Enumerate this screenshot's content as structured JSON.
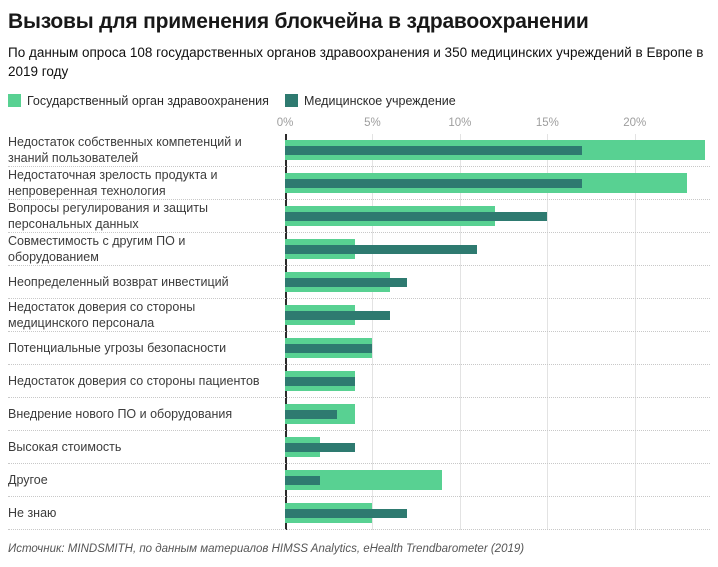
{
  "header": {
    "title": "Вызовы для применения блокчейна в здравоохранении",
    "subtitle": "По данным опроса 108 государственных органов здравоохранения и 350 медицинских учреждений в Европе в 2019 году"
  },
  "legend": [
    {
      "label": "Государственный орган здравоохранения",
      "color": "#58d192"
    },
    {
      "label": "Медицинское учреждение",
      "color": "#2e7a70"
    }
  ],
  "footer": {
    "source": "Источник: MINDSMITH, по данным материалов HIMSS Analytics, eHealth Trendbarometer (2019)"
  },
  "chart_data": {
    "type": "bar",
    "orientation": "horizontal",
    "title": "Вызовы для применения блокчейна в здравоохранении",
    "categories": [
      "Недостаток собственных компетенций и знаний пользователей",
      "Недостаточная зрелость продукта и непроверенная технология",
      "Вопросы регулирования и защиты персональных данных",
      "Совместимость с другим ПО и оборудованием",
      "Неопределенный возврат инвестиций",
      "Недостаток доверия со стороны медицинского персонала",
      "Потенциальные угрозы безопасности",
      "Недостаток доверия со стороны пациентов",
      "Внедрение нового ПО и оборудования",
      "Высокая стоимость",
      "Другое",
      "Не знаю"
    ],
    "series": [
      {
        "name": "Государственный орган здравоохранения",
        "color": "#58d192",
        "values": [
          24,
          23,
          12,
          4,
          6,
          4,
          5,
          4,
          4,
          2,
          9,
          5
        ]
      },
      {
        "name": "Медицинское учреждение",
        "color": "#2e7a70",
        "values": [
          17,
          17,
          15,
          11,
          7,
          6,
          5,
          4,
          3,
          4,
          2,
          7
        ]
      }
    ],
    "value_unit": "%",
    "x_ticks": [
      "0%",
      "5%",
      "10%",
      "15%",
      "20%"
    ],
    "x_tick_values": [
      0,
      5,
      10,
      15,
      20
    ],
    "xlim": [
      0,
      24.3
    ],
    "grid": {
      "vertical": "solid",
      "horizontal": "dotted"
    },
    "legend_position": "top-left"
  }
}
